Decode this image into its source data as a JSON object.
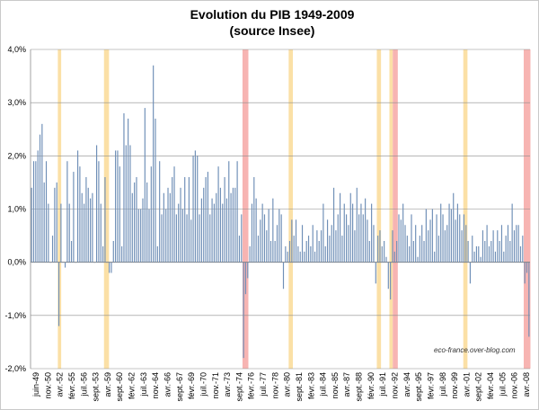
{
  "chart_data": {
    "type": "bar",
    "title": "Evolution du PIB 1949-2009",
    "subtitle": "(source Insee)",
    "xlabel": "",
    "ylabel": "",
    "ylim": [
      -0.02,
      0.04
    ],
    "ytick_labels": [
      "4,0%",
      "3,0%",
      "2,0%",
      "1,0%",
      "0,0%",
      "-1,0%",
      "-2,0%"
    ],
    "xtick_labels": [
      "juin-49",
      "nov.-50",
      "avr.-52",
      "févr.-55",
      "juil.-56",
      "sept.-53",
      "avr.-59",
      "sept.-60",
      "févr.-62",
      "juil.-63",
      "nov.-64",
      "avr.-66",
      "sept.-67",
      "févr.-69",
      "juil.-70",
      "nov.-71",
      "avr.-73",
      "sept.-74",
      "févr.-76",
      "juil.-77",
      "nov.-78",
      "avr.-80",
      "sept.-81",
      "févr.-83",
      "juil.-84",
      "nov.-85",
      "avr.-87",
      "sept.-88",
      "févr.-90",
      "juil.-91",
      "nov.-92",
      "avr.-94",
      "sept.-95",
      "févr.-97",
      "juil.-98",
      "nov.-99",
      "avr.-01",
      "sept.-02",
      "févr.-04",
      "juil.-05",
      "nov.-06",
      "avr.-08"
    ],
    "grid": true,
    "bar_color": "#6f8fb7",
    "recession_bands": [
      {
        "start": 1952.5,
        "end": 1952.9,
        "color": "#fbe0a6"
      },
      {
        "start": 1958.0,
        "end": 1958.6,
        "color": "#fbe0a6"
      },
      {
        "start": 1974.5,
        "end": 1975.2,
        "color": "#f7b4b2"
      },
      {
        "start": 1980.0,
        "end": 1980.5,
        "color": "#fbe0a6"
      },
      {
        "start": 1990.5,
        "end": 1991.0,
        "color": "#fbe0a6"
      },
      {
        "start": 1992.0,
        "end": 1992.4,
        "color": "#fbe0a6"
      },
      {
        "start": 1992.4,
        "end": 1993.0,
        "color": "#f7b4b2"
      },
      {
        "start": 2000.8,
        "end": 2001.3,
        "color": "#fbe0a6"
      },
      {
        "start": 2008.0,
        "end": 2008.8,
        "color": "#f7b4b2"
      }
    ],
    "x_start": 1949.25,
    "x_step": 0.25,
    "values": [
      0.014,
      0.019,
      0.019,
      0.021,
      0.024,
      0.026,
      0.015,
      0.019,
      0.011,
      0.0,
      0.005,
      0.014,
      0.015,
      -0.012,
      0.011,
      0.0,
      -0.001,
      0.019,
      0.011,
      0.004,
      0.017,
      0.0,
      0.021,
      0.018,
      0.013,
      0.011,
      0.016,
      0.014,
      0.012,
      0.013,
      0.0,
      0.022,
      0.019,
      0.011,
      0.003,
      0.016,
      0.0,
      -0.002,
      -0.002,
      0.004,
      0.021,
      0.021,
      0.018,
      0.003,
      0.028,
      0.022,
      0.027,
      0.022,
      0.013,
      0.015,
      0.016,
      0.01,
      0.01,
      0.012,
      0.029,
      0.015,
      0.01,
      0.018,
      0.037,
      0.027,
      0.003,
      0.019,
      0.009,
      0.013,
      0.01,
      0.014,
      0.013,
      0.016,
      0.018,
      0.009,
      0.011,
      0.014,
      0.01,
      0.016,
      0.009,
      0.016,
      0.008,
      0.02,
      0.021,
      0.02,
      0.009,
      0.012,
      0.014,
      0.016,
      0.017,
      0.009,
      0.012,
      0.011,
      0.013,
      0.018,
      0.014,
      0.011,
      0.016,
      0.012,
      0.019,
      0.013,
      0.014,
      0.014,
      0.019,
      0.005,
      0.009,
      -0.018,
      -0.006,
      -0.003,
      0.003,
      0.011,
      0.016,
      0.012,
      0.005,
      0.008,
      0.011,
      0.009,
      0.006,
      0.01,
      0.004,
      0.012,
      0.004,
      0.007,
      0.01,
      0.009,
      -0.005,
      0.003,
      0.002,
      0.004,
      0.008,
      0.005,
      0.008,
      0.003,
      0.002,
      0.007,
      0.002,
      0.004,
      0.005,
      0.003,
      0.007,
      0.002,
      0.006,
      0.004,
      0.006,
      0.011,
      0.003,
      0.008,
      0.005,
      0.007,
      0.014,
      0.006,
      0.009,
      0.013,
      0.005,
      0.011,
      0.009,
      0.007,
      0.013,
      0.011,
      0.006,
      0.014,
      0.009,
      0.011,
      0.009,
      0.012,
      0.008,
      0.004,
      0.011,
      0.007,
      -0.004,
      0.005,
      0.006,
      0.003,
      0.004,
      0.001,
      -0.005,
      -0.007,
      0.006,
      0.002,
      0.004,
      0.009,
      0.008,
      0.011,
      0.007,
      0.005,
      0.003,
      0.009,
      0.004,
      0.007,
      0.001,
      0.005,
      0.007,
      0.004,
      0.01,
      0.006,
      0.008,
      0.01,
      0.002,
      0.009,
      0.005,
      0.011,
      0.009,
      0.006,
      0.007,
      0.011,
      0.01,
      0.013,
      0.008,
      0.011,
      0.009,
      0.006,
      0.009,
      0.007,
      0.004,
      -0.004,
      0.005,
      0.002,
      0.003,
      0.003,
      0.001,
      0.006,
      0.004,
      0.007,
      0.003,
      0.004,
      0.006,
      0.002,
      0.006,
      0.004,
      0.007,
      0.002,
      0.005,
      0.007,
      0.004,
      0.011,
      0.006,
      0.007,
      0.007,
      0.003,
      0.005,
      -0.004,
      -0.002,
      -0.014
    ],
    "watermark": "eco-france.over-blog.com"
  }
}
